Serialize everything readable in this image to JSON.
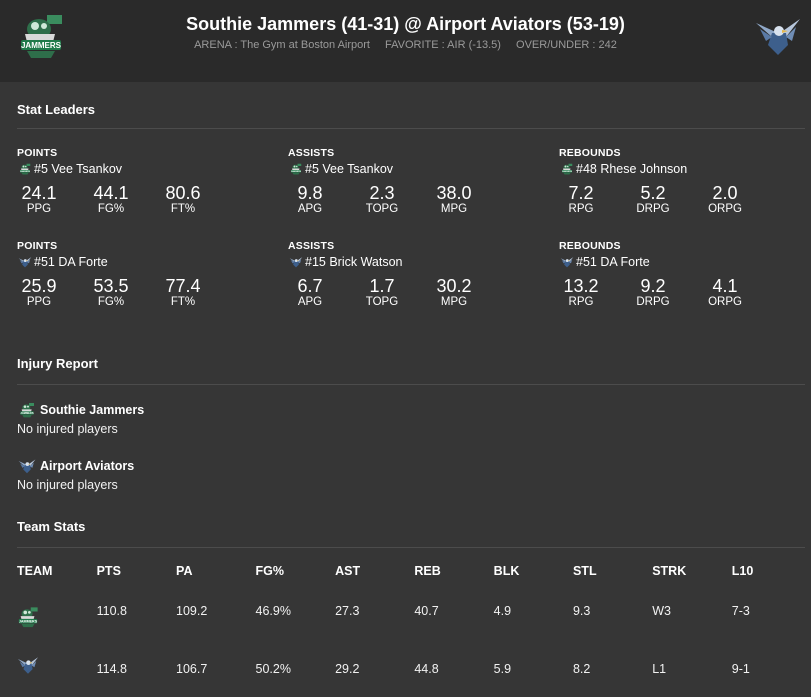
{
  "header": {
    "matchup": "Southie Jammers (41-31) @ Airport Aviators (53-19)",
    "arena": "ARENA : The Gym at Boston Airport",
    "favorite": "FAVORITE : AIR (-13.5)",
    "over_under": "OVER/UNDER : 242",
    "home_logo": "jammers-logo",
    "away_logo": "aviators-logo"
  },
  "stat_leaders": {
    "title": "Stat Leaders",
    "rows": [
      [
        {
          "category": "POINTS",
          "team_icon": "jammers-icon",
          "player": "#5 Vee Tsankov",
          "stats": [
            {
              "value": "24.1",
              "label": "PPG"
            },
            {
              "value": "44.1",
              "label": "FG%"
            },
            {
              "value": "80.6",
              "label": "FT%"
            }
          ]
        },
        {
          "category": "ASSISTS",
          "team_icon": "jammers-icon",
          "player": "#5 Vee Tsankov",
          "stats": [
            {
              "value": "9.8",
              "label": "APG"
            },
            {
              "value": "2.3",
              "label": "TOPG"
            },
            {
              "value": "38.0",
              "label": "MPG"
            }
          ]
        },
        {
          "category": "REBOUNDS",
          "team_icon": "jammers-icon",
          "player": "#48 Rhese Johnson",
          "stats": [
            {
              "value": "7.2",
              "label": "RPG"
            },
            {
              "value": "5.2",
              "label": "DRPG"
            },
            {
              "value": "2.0",
              "label": "ORPG"
            }
          ]
        }
      ],
      [
        {
          "category": "POINTS",
          "team_icon": "aviators-icon",
          "player": "#51 DA Forte",
          "stats": [
            {
              "value": "25.9",
              "label": "PPG"
            },
            {
              "value": "53.5",
              "label": "FG%"
            },
            {
              "value": "77.4",
              "label": "FT%"
            }
          ]
        },
        {
          "category": "ASSISTS",
          "team_icon": "aviators-icon",
          "player": "#15 Brick Watson",
          "stats": [
            {
              "value": "6.7",
              "label": "APG"
            },
            {
              "value": "1.7",
              "label": "TOPG"
            },
            {
              "value": "30.2",
              "label": "MPG"
            }
          ]
        },
        {
          "category": "REBOUNDS",
          "team_icon": "aviators-icon",
          "player": "#51 DA Forte",
          "stats": [
            {
              "value": "13.2",
              "label": "RPG"
            },
            {
              "value": "9.2",
              "label": "DRPG"
            },
            {
              "value": "4.1",
              "label": "ORPG"
            }
          ]
        }
      ]
    ]
  },
  "injury_report": {
    "title": "Injury Report",
    "teams": [
      {
        "name": "Southie Jammers",
        "icon": "jammers-icon",
        "note": "No injured players"
      },
      {
        "name": "Airport Aviators",
        "icon": "aviators-icon",
        "note": "No injured players"
      }
    ]
  },
  "team_stats": {
    "title": "Team Stats",
    "columns": [
      "TEAM",
      "PTS",
      "PA",
      "FG%",
      "AST",
      "REB",
      "BLK",
      "STL",
      "STRK",
      "L10"
    ],
    "rows": [
      {
        "team_icon": "jammers-icon",
        "values": [
          "110.8",
          "109.2",
          "46.9%",
          "27.3",
          "40.7",
          "4.9",
          "9.3",
          "W3",
          "7-3"
        ]
      },
      {
        "team_icon": "aviators-icon",
        "values": [
          "114.8",
          "106.7",
          "50.2%",
          "29.2",
          "44.8",
          "5.9",
          "8.2",
          "L1",
          "9-1"
        ]
      }
    ]
  },
  "colors": {
    "background": "#363636",
    "header": "#2a2a2a",
    "jammers_green": "#1f7a4a",
    "aviators_blue": "#3d5f8c"
  }
}
